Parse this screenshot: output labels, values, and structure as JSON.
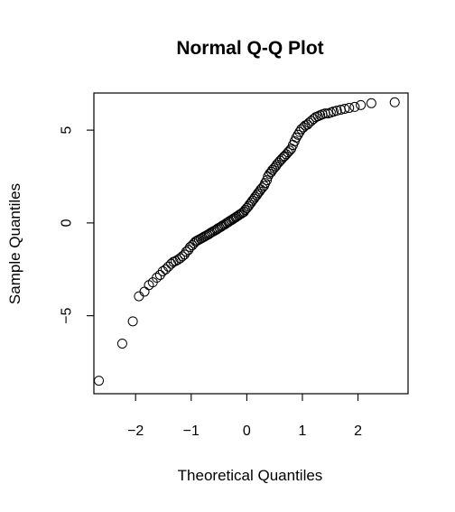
{
  "chart_data": {
    "type": "scatter",
    "title": "Normal Q-Q Plot",
    "xlabel": "Theoretical Quantiles",
    "ylabel": "Sample Quantiles",
    "xlim": [
      -2.75,
      2.9
    ],
    "ylim": [
      -9.2,
      7.0
    ],
    "xticks": [
      -2,
      -1,
      0,
      1,
      2
    ],
    "xtick_labels": [
      "−2",
      "−1",
      "0",
      "1",
      "2"
    ],
    "yticks": [
      -5,
      0,
      5
    ],
    "ytick_labels": [
      "−5",
      "0",
      "5"
    ],
    "grid": false,
    "series": [
      {
        "marker": "open-circle",
        "color": "#000000",
        "x": [
          -2.66,
          -2.24,
          -2.05,
          -1.94,
          -1.84,
          -1.76,
          -1.69,
          -1.62,
          -1.56,
          -1.51,
          -1.46,
          -1.41,
          -1.36,
          -1.32,
          -1.28,
          -1.24,
          -1.2,
          -1.16,
          -1.12,
          -1.09,
          -1.05,
          -1.02,
          -0.98,
          -0.95,
          -0.92,
          -0.89,
          -0.86,
          -0.83,
          -0.8,
          -0.77,
          -0.74,
          -0.71,
          -0.68,
          -0.66,
          -0.63,
          -0.6,
          -0.57,
          -0.54,
          -0.52,
          -0.49,
          -0.46,
          -0.44,
          -0.41,
          -0.38,
          -0.36,
          -0.33,
          -0.31,
          -0.28,
          -0.25,
          -0.23,
          -0.2,
          -0.18,
          -0.15,
          -0.13,
          -0.1,
          -0.08,
          -0.05,
          -0.03,
          0.0,
          0.03,
          0.05,
          0.08,
          0.1,
          0.13,
          0.15,
          0.18,
          0.2,
          0.23,
          0.25,
          0.28,
          0.31,
          0.33,
          0.36,
          0.38,
          0.41,
          0.44,
          0.46,
          0.49,
          0.52,
          0.54,
          0.57,
          0.6,
          0.63,
          0.66,
          0.68,
          0.71,
          0.74,
          0.77,
          0.8,
          0.83,
          0.86,
          0.89,
          0.92,
          0.95,
          0.98,
          1.02,
          1.05,
          1.09,
          1.12,
          1.16,
          1.2,
          1.24,
          1.28,
          1.32,
          1.36,
          1.41,
          1.46,
          1.51,
          1.56,
          1.62,
          1.69,
          1.76,
          1.84,
          1.94,
          2.05,
          2.24,
          2.66
        ],
        "y": [
          -8.5,
          -6.5,
          -5.3,
          -3.95,
          -3.7,
          -3.35,
          -3.2,
          -2.95,
          -2.8,
          -2.6,
          -2.5,
          -2.35,
          -2.2,
          -2.1,
          -2.05,
          -1.98,
          -1.9,
          -1.8,
          -1.7,
          -1.55,
          -1.45,
          -1.3,
          -1.2,
          -1.1,
          -1.0,
          -0.95,
          -0.9,
          -0.85,
          -0.8,
          -0.75,
          -0.7,
          -0.65,
          -0.6,
          -0.55,
          -0.5,
          -0.45,
          -0.4,
          -0.35,
          -0.3,
          -0.25,
          -0.2,
          -0.15,
          -0.1,
          -0.05,
          0.0,
          0.05,
          0.1,
          0.15,
          0.2,
          0.25,
          0.3,
          0.35,
          0.4,
          0.45,
          0.5,
          0.55,
          0.6,
          0.7,
          0.8,
          0.9,
          1.0,
          1.1,
          1.2,
          1.3,
          1.4,
          1.5,
          1.6,
          1.7,
          1.8,
          1.9,
          2.0,
          2.15,
          2.3,
          2.5,
          2.65,
          2.75,
          2.85,
          2.95,
          3.05,
          3.15,
          3.25,
          3.35,
          3.45,
          3.55,
          3.6,
          3.7,
          3.8,
          3.9,
          4.0,
          4.2,
          4.4,
          4.6,
          4.75,
          4.9,
          5.05,
          5.15,
          5.25,
          5.3,
          5.4,
          5.5,
          5.6,
          5.7,
          5.75,
          5.8,
          5.85,
          5.9,
          5.9,
          5.95,
          6.0,
          6.05,
          6.1,
          6.15,
          6.2,
          6.25,
          6.35,
          6.45,
          6.5
        ]
      }
    ]
  }
}
